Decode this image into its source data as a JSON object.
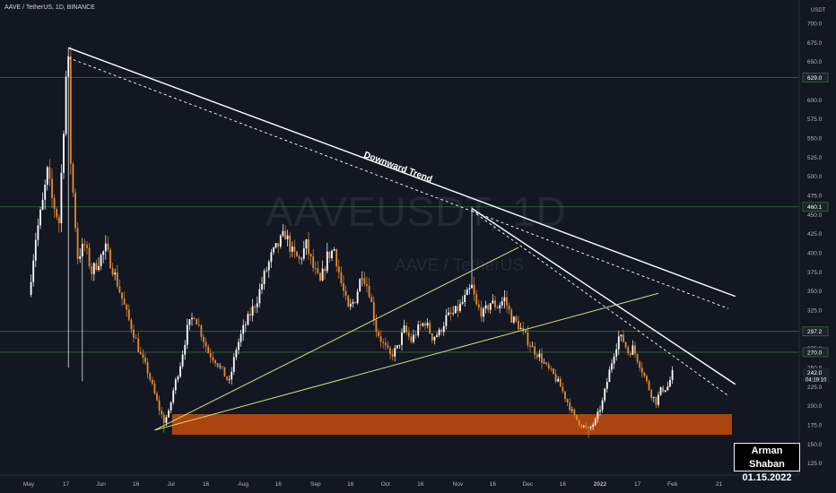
{
  "symbol_title": "AAVE / TetherUS, 1D, BINANCE",
  "watermark": {
    "ticker": "AAVEUSDT, 1D",
    "name": "AAVE / TetherUS"
  },
  "author": {
    "name": "Arman Shaban",
    "date": "01.15.2022"
  },
  "currency_label": "USDT",
  "colors": {
    "background": "#131722",
    "candle_up": "#ffffff",
    "candle_down": "#e58a2e",
    "support_zone": "#b84a0e",
    "trendline": "#ffffff",
    "channel_line": "#d7e27a",
    "horizontal_level": "#2e6b3a",
    "label_bg": "#1e222d",
    "axis_text": "#b2b5be"
  },
  "chart_data": {
    "type": "candlestick",
    "y_axis": {
      "position": "right",
      "min": 125,
      "max": 725,
      "ticks": [
        700,
        675,
        650,
        600,
        575,
        550,
        525,
        500,
        475,
        450,
        425,
        400,
        375,
        350,
        325,
        300,
        275,
        250,
        225,
        200,
        175,
        150,
        125
      ]
    },
    "x_axis": {
      "tick_labels": [
        {
          "label": "May",
          "day": 0
        },
        {
          "label": "17",
          "day": 16
        },
        {
          "label": "Jun",
          "day": 31
        },
        {
          "label": "16",
          "day": 46
        },
        {
          "label": "Jul",
          "day": 61
        },
        {
          "label": "16",
          "day": 76
        },
        {
          "label": "Aug",
          "day": 92
        },
        {
          "label": "16",
          "day": 107
        },
        {
          "label": "Sep",
          "day": 123
        },
        {
          "label": "16",
          "day": 138
        },
        {
          "label": "Oct",
          "day": 153
        },
        {
          "label": "16",
          "day": 168
        },
        {
          "label": "Nov",
          "day": 184
        },
        {
          "label": "16",
          "day": 199
        },
        {
          "label": "Dec",
          "day": 214
        },
        {
          "label": "16",
          "day": 229
        },
        {
          "label": "2022",
          "day": 245
        },
        {
          "label": "17",
          "day": 261
        },
        {
          "label": "Feb",
          "day": 276
        },
        {
          "label": "21",
          "day": 296
        }
      ]
    },
    "price_path": [
      {
        "day": 0,
        "price": 345
      },
      {
        "day": 3,
        "price": 420
      },
      {
        "day": 6,
        "price": 465
      },
      {
        "day": 8,
        "price": 505
      },
      {
        "day": 10,
        "price": 470
      },
      {
        "day": 13,
        "price": 440
      },
      {
        "day": 16,
        "price": 630
      },
      {
        "day": 17,
        "price": 645
      },
      {
        "day": 18,
        "price": 520
      },
      {
        "day": 21,
        "price": 395
      },
      {
        "day": 24,
        "price": 410
      },
      {
        "day": 27,
        "price": 375
      },
      {
        "day": 30,
        "price": 390
      },
      {
        "day": 33,
        "price": 405
      },
      {
        "day": 36,
        "price": 380
      },
      {
        "day": 39,
        "price": 350
      },
      {
        "day": 42,
        "price": 320
      },
      {
        "day": 45,
        "price": 295
      },
      {
        "day": 48,
        "price": 265
      },
      {
        "day": 51,
        "price": 245
      },
      {
        "day": 54,
        "price": 215
      },
      {
        "day": 56,
        "price": 195
      },
      {
        "day": 58,
        "price": 180
      },
      {
        "day": 60,
        "price": 190
      },
      {
        "day": 62,
        "price": 220
      },
      {
        "day": 65,
        "price": 255
      },
      {
        "day": 68,
        "price": 300
      },
      {
        "day": 71,
        "price": 320
      },
      {
        "day": 74,
        "price": 295
      },
      {
        "day": 77,
        "price": 270
      },
      {
        "day": 80,
        "price": 260
      },
      {
        "day": 83,
        "price": 245
      },
      {
        "day": 86,
        "price": 230
      },
      {
        "day": 89,
        "price": 275
      },
      {
        "day": 92,
        "price": 300
      },
      {
        "day": 95,
        "price": 320
      },
      {
        "day": 98,
        "price": 340
      },
      {
        "day": 101,
        "price": 370
      },
      {
        "day": 104,
        "price": 395
      },
      {
        "day": 107,
        "price": 410
      },
      {
        "day": 110,
        "price": 425
      },
      {
        "day": 113,
        "price": 400
      },
      {
        "day": 116,
        "price": 390
      },
      {
        "day": 119,
        "price": 410
      },
      {
        "day": 122,
        "price": 380
      },
      {
        "day": 125,
        "price": 360
      },
      {
        "day": 128,
        "price": 395
      },
      {
        "day": 131,
        "price": 405
      },
      {
        "day": 134,
        "price": 360
      },
      {
        "day": 137,
        "price": 325
      },
      {
        "day": 140,
        "price": 340
      },
      {
        "day": 143,
        "price": 375
      },
      {
        "day": 146,
        "price": 350
      },
      {
        "day": 149,
        "price": 300
      },
      {
        "day": 152,
        "price": 280
      },
      {
        "day": 155,
        "price": 265
      },
      {
        "day": 158,
        "price": 275
      },
      {
        "day": 161,
        "price": 300
      },
      {
        "day": 164,
        "price": 285
      },
      {
        "day": 167,
        "price": 300
      },
      {
        "day": 170,
        "price": 310
      },
      {
        "day": 173,
        "price": 290
      },
      {
        "day": 176,
        "price": 295
      },
      {
        "day": 179,
        "price": 315
      },
      {
        "day": 182,
        "price": 320
      },
      {
        "day": 185,
        "price": 330
      },
      {
        "day": 188,
        "price": 345
      },
      {
        "day": 190,
        "price": 355
      },
      {
        "day": 192,
        "price": 330
      },
      {
        "day": 195,
        "price": 320
      },
      {
        "day": 198,
        "price": 335
      },
      {
        "day": 201,
        "price": 330
      },
      {
        "day": 204,
        "price": 340
      },
      {
        "day": 207,
        "price": 315
      },
      {
        "day": 210,
        "price": 305
      },
      {
        "day": 213,
        "price": 290
      },
      {
        "day": 216,
        "price": 275
      },
      {
        "day": 219,
        "price": 265
      },
      {
        "day": 222,
        "price": 250
      },
      {
        "day": 225,
        "price": 240
      },
      {
        "day": 228,
        "price": 225
      },
      {
        "day": 231,
        "price": 205
      },
      {
        "day": 234,
        "price": 185
      },
      {
        "day": 237,
        "price": 175
      },
      {
        "day": 240,
        "price": 168
      },
      {
        "day": 243,
        "price": 180
      },
      {
        "day": 246,
        "price": 205
      },
      {
        "day": 249,
        "price": 245
      },
      {
        "day": 251,
        "price": 270
      },
      {
        "day": 253,
        "price": 290
      },
      {
        "day": 255,
        "price": 285
      },
      {
        "day": 257,
        "price": 270
      },
      {
        "day": 259,
        "price": 275
      },
      {
        "day": 262,
        "price": 255
      },
      {
        "day": 265,
        "price": 230
      },
      {
        "day": 267,
        "price": 215
      },
      {
        "day": 269,
        "price": 205
      },
      {
        "day": 271,
        "price": 220
      },
      {
        "day": 274,
        "price": 225
      },
      {
        "day": 276,
        "price": 242
      }
    ],
    "annotations": {
      "trend_label": "Downward Trend",
      "support_zone": {
        "from_day": 48,
        "to_day": 305,
        "low": 162,
        "high": 189
      },
      "horizontal_levels": [
        {
          "price": 629.0,
          "label": "629.0"
        },
        {
          "price": 460.1,
          "label": "460.1"
        },
        {
          "price": 297.2,
          "label": "297.2"
        },
        {
          "price": 270.0,
          "label": "270.0"
        }
      ],
      "current_price": {
        "price": 242.0,
        "label": "242.0",
        "countdown": "04:19:10"
      },
      "trendlines": [
        {
          "style": "solid",
          "color": "#ffffff",
          "from": {
            "day": 17,
            "price": 668
          },
          "to": {
            "day": 303,
            "price": 343
          }
        },
        {
          "style": "dashed",
          "color": "#ffffff",
          "from": {
            "day": 17,
            "price": 655
          },
          "to": {
            "day": 300,
            "price": 327
          }
        },
        {
          "style": "solid",
          "color": "#ffffff",
          "from": {
            "day": 190,
            "price": 458
          },
          "to": {
            "day": 303,
            "price": 228
          }
        },
        {
          "style": "dashed",
          "color": "#ffffff",
          "from": {
            "day": 190,
            "price": 455
          },
          "to": {
            "day": 300,
            "price": 213
          }
        },
        {
          "style": "solid",
          "color": "#d7e27a",
          "from": {
            "day": 54,
            "price": 168
          },
          "to": {
            "day": 210,
            "price": 407
          }
        },
        {
          "style": "solid",
          "color": "#d7e27a",
          "from": {
            "day": 54,
            "price": 168
          },
          "to": {
            "day": 270,
            "price": 347
          }
        }
      ]
    }
  }
}
